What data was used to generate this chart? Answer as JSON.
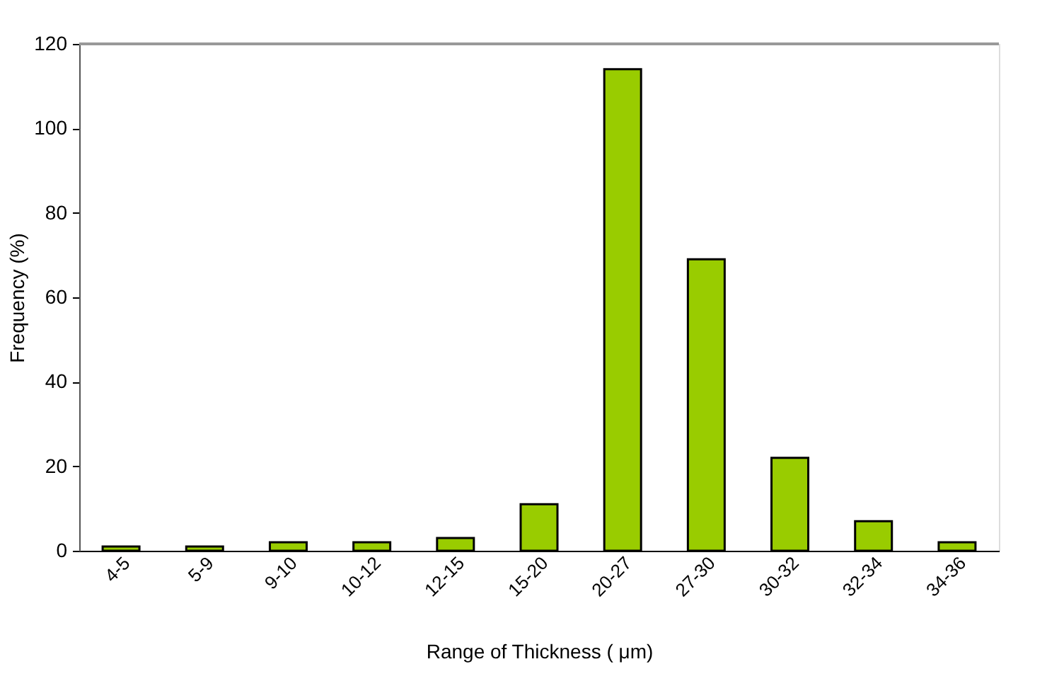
{
  "chart_data": {
    "type": "bar",
    "xlabel": "Range of Thickness ( μm)",
    "ylabel": "Frequency (%)",
    "categories": [
      "4-5",
      "5-9",
      "9-10",
      "10-12",
      "12-15",
      "15-20",
      "20-27",
      "27-30",
      "30-32",
      "32-34",
      "34-36"
    ],
    "values": [
      1,
      1,
      2,
      2,
      3,
      11,
      114,
      69,
      22,
      7,
      2
    ],
    "color": "#99cc00",
    "ylim": [
      0,
      120
    ],
    "yticks": [
      0,
      20,
      40,
      60,
      80,
      100,
      120
    ],
    "grid": false
  }
}
